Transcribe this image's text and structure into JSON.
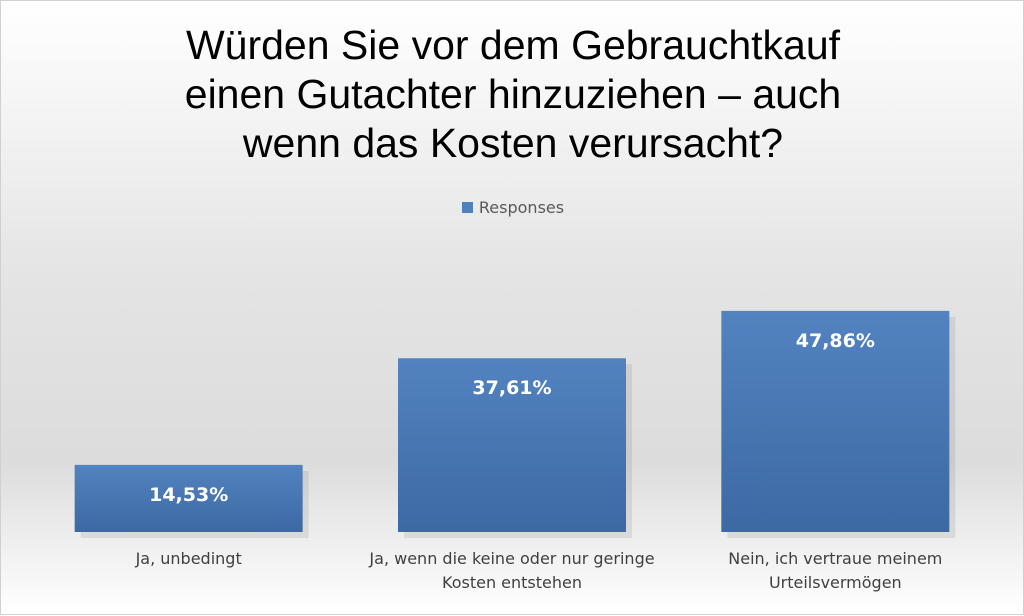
{
  "chart_data": {
    "type": "bar",
    "title": [
      "Würden Sie vor dem Gebrauchtkauf",
      "einen Gutachter hinzuziehen – auch",
      "wenn das Kosten verursacht?"
    ],
    "categories": [
      [
        "Ja, unbedingt"
      ],
      [
        "Ja, wenn die keine oder nur geringe",
        "Kosten entstehen"
      ],
      [
        "Nein, ich vertraue meinem",
        "Urteilsvermögen"
      ]
    ],
    "series": [
      {
        "name": "Responses",
        "values": [
          14.53,
          37.61,
          47.86
        ],
        "labels": [
          "14,53%",
          "37,61%",
          "47,86%"
        ],
        "color": "#4f81bd"
      }
    ],
    "ylim": [
      0,
      50
    ],
    "grid": false,
    "legend": "top",
    "xlabel": "",
    "ylabel": ""
  }
}
